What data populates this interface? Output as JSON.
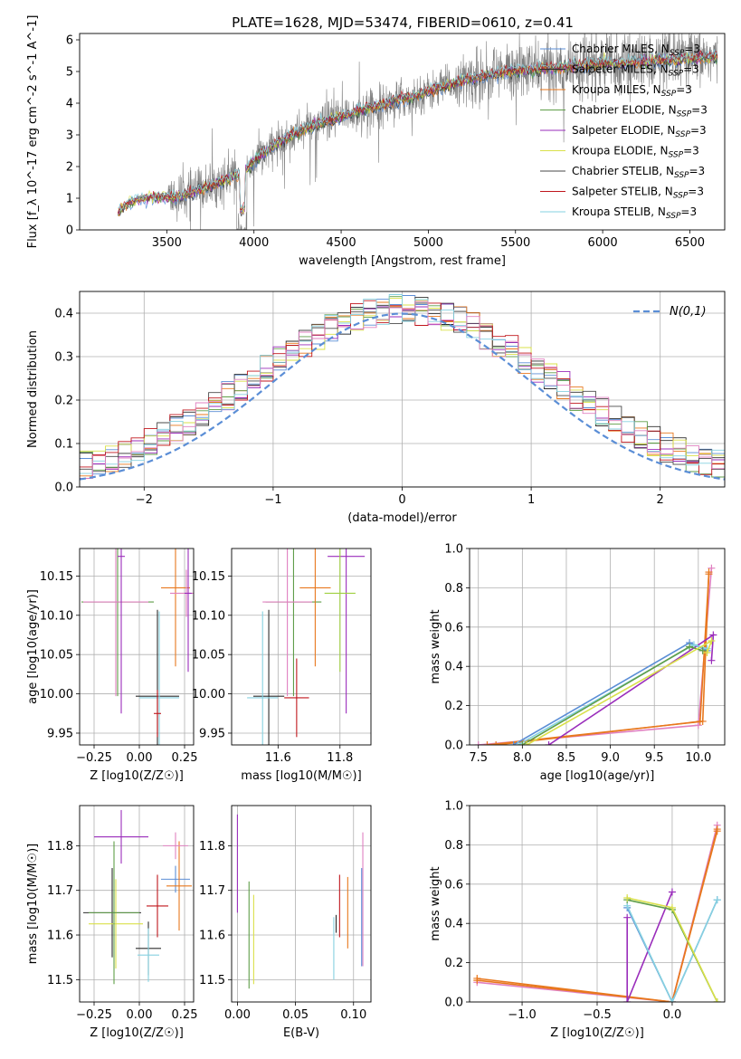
{
  "figure": {
    "title": "PLATE=1628, MJD=53474, FIBERID=0610, z=0.41"
  },
  "colors": {
    "data": "#808080",
    "series": [
      "#5b8ed6",
      "#2d2d2d",
      "#e8781e",
      "#5f9e48",
      "#9a2dbb",
      "#d9e04a",
      "#4a4a4a",
      "#c0161c",
      "#86d1e0"
    ],
    "extra": [
      "#e080c0",
      "#a0d040"
    ],
    "gauss": "#5b8ed6",
    "grid": "#b0b0b0"
  },
  "legend": [
    "Chabrier MILES, N_SSP=3",
    "Salpeter MILES, N_SSP=3",
    "Kroupa MILES, N_SSP=3",
    "Chabrier ELODIE, N_SSP=3",
    "Salpeter ELODIE, N_SSP=3",
    "Kroupa ELODIE, N_SSP=3",
    "Chabrier STELIB, N_SSP=3",
    "Salpeter STELIB, N_SSP=3",
    "Kroupa STELIB, N_SSP=3"
  ],
  "chart_data": [
    {
      "id": "spectrum",
      "type": "line",
      "xlabel": "wavelength [Angstrom, rest frame]",
      "ylabel": "Flux [f_λ 10^-17 erg cm^-2 s^-1 A^-1]",
      "xlim": [
        3000,
        6700
      ],
      "ylim": [
        0,
        6.2
      ],
      "xticks": [
        3500,
        4000,
        4500,
        5000,
        5500,
        6000,
        6500
      ],
      "yticks": [
        0,
        1,
        2,
        3,
        4,
        5,
        6
      ],
      "grid": false,
      "legend_position": "top-right",
      "continuum": {
        "x": [
          3220,
          3260,
          3350,
          3450,
          3550,
          3650,
          3750,
          3850,
          3950,
          4000,
          4100,
          4200,
          4300,
          4400,
          4500,
          4600,
          4700,
          4800,
          4900,
          5000,
          5100,
          5200,
          5300,
          5400,
          5500,
          5600,
          5700,
          5800,
          5900,
          6000,
          6100,
          6200,
          6300,
          6400,
          6500,
          6600
        ],
        "y": [
          0.5,
          0.8,
          1.0,
          1.05,
          1.0,
          1.2,
          1.4,
          1.6,
          1.85,
          2.2,
          2.6,
          2.95,
          3.2,
          3.4,
          3.55,
          3.75,
          3.9,
          4.05,
          4.2,
          4.35,
          4.55,
          4.7,
          4.85,
          4.95,
          5.0,
          5.05,
          5.1,
          5.15,
          5.2,
          5.25,
          5.25,
          5.3,
          5.35,
          5.35,
          5.4,
          5.45
        ]
      }
    },
    {
      "id": "residuals",
      "type": "line",
      "xlabel": "(data-model)/error",
      "ylabel": "Normed distribution",
      "xlim": [
        -2.5,
        2.5
      ],
      "ylim": [
        0,
        0.45
      ],
      "xticks": [
        -2,
        -1,
        0,
        1,
        2
      ],
      "yticks": [
        0.0,
        0.1,
        0.2,
        0.3,
        0.4
      ],
      "grid": true,
      "legend": "N(0,1)",
      "legend_position": "top-right"
    },
    {
      "id": "age-vs-Z",
      "type": "scatter",
      "xlabel": "Z [log10(Z/Z☉)]",
      "ylabel": "age  [log10(age/yr)]",
      "xlim": [
        -0.33,
        0.3
      ],
      "ylim": [
        9.935,
        10.185
      ],
      "xticks": [
        -0.25,
        0.0,
        0.25
      ],
      "yticks": [
        9.95,
        10.0,
        10.05,
        10.1,
        10.15
      ],
      "grid": true,
      "points": [
        {
          "x": -0.12,
          "y": 10.117,
          "xerr": 0.2,
          "yerr": 0.12,
          "c": 3
        },
        {
          "x": -0.13,
          "y": 10.117,
          "xerr": 0.18,
          "yerr": 0.12,
          "c": 9
        },
        {
          "x": -0.1,
          "y": 10.175,
          "xerr": 0.02,
          "yerr": 0.2,
          "c": 4
        },
        {
          "x": 0.1,
          "y": 9.997,
          "xerr": 0.12,
          "yerr": 0.11,
          "c": 1
        },
        {
          "x": 0.11,
          "y": 9.995,
          "xerr": 0.11,
          "yerr": 0.11,
          "c": 8
        },
        {
          "x": 0.1,
          "y": 9.975,
          "xerr": 0.02,
          "yerr": 0.03,
          "c": 7
        },
        {
          "x": 0.2,
          "y": 10.135,
          "xerr": 0.08,
          "yerr": 0.1,
          "c": 2
        },
        {
          "x": 0.26,
          "y": 10.128,
          "xerr": 0.09,
          "yerr": 0.03,
          "c": 9
        },
        {
          "x": 0.27,
          "y": 10.128,
          "xerr": 0.02,
          "yerr": 0.1,
          "c": 4
        }
      ]
    },
    {
      "id": "age-vs-mass",
      "type": "scatter",
      "xlabel": "mass [log10(M/M☉)]",
      "ylabel": "",
      "xlim": [
        11.45,
        11.9
      ],
      "ylim": [
        9.935,
        10.185
      ],
      "xticks": [
        11.6,
        11.8
      ],
      "yticks": [
        9.95,
        10.0,
        10.05,
        10.1,
        10.15
      ],
      "grid": true,
      "points": [
        {
          "x": 11.65,
          "y": 10.117,
          "xerr": 0.09,
          "yerr": 0.12,
          "c": 3
        },
        {
          "x": 11.63,
          "y": 10.117,
          "xerr": 0.08,
          "yerr": 0.12,
          "c": 9
        },
        {
          "x": 11.82,
          "y": 10.175,
          "xerr": 0.06,
          "yerr": 0.2,
          "c": 4
        },
        {
          "x": 11.57,
          "y": 9.997,
          "xerr": 0.05,
          "yerr": 0.11,
          "c": 1
        },
        {
          "x": 11.55,
          "y": 9.995,
          "xerr": 0.05,
          "yerr": 0.11,
          "c": 8
        },
        {
          "x": 11.66,
          "y": 9.995,
          "xerr": 0.04,
          "yerr": 0.05,
          "c": 7
        },
        {
          "x": 11.72,
          "y": 10.135,
          "xerr": 0.05,
          "yerr": 0.1,
          "c": 2
        },
        {
          "x": 11.8,
          "y": 10.128,
          "xerr": 0.05,
          "yerr": 0.1,
          "c": 10
        }
      ]
    },
    {
      "id": "massweight-vs-age",
      "type": "line",
      "xlabel": "age  [log10(age/yr)]",
      "ylabel": "mass weight",
      "xlim": [
        7.4,
        10.3
      ],
      "ylim": [
        0,
        1.0
      ],
      "xticks": [
        7.5,
        8.0,
        8.5,
        9.0,
        9.5,
        10.0
      ],
      "yticks": [
        0.0,
        0.2,
        0.4,
        0.6,
        0.8,
        1.0
      ],
      "grid": true,
      "series": [
        {
          "x": [
            7.5,
            10.0,
            10.15
          ],
          "y": [
            0.0,
            0.1,
            0.9
          ],
          "c": 9
        },
        {
          "x": [
            7.6,
            10.05,
            10.12
          ],
          "y": [
            0.0,
            0.12,
            0.88
          ],
          "c": 2
        },
        {
          "x": [
            7.7,
            10.02,
            10.12
          ],
          "y": [
            0.0,
            0.12,
            0.87
          ],
          "c": 2
        },
        {
          "x": [
            8.3,
            10.17,
            10.15
          ],
          "y": [
            0.0,
            0.56,
            0.43
          ],
          "c": 4
        },
        {
          "x": [
            7.9,
            9.9,
            10.1
          ],
          "y": [
            0.0,
            0.52,
            0.48
          ],
          "c": 0
        },
        {
          "x": [
            7.95,
            9.95,
            10.1
          ],
          "y": [
            0.0,
            0.51,
            0.49
          ],
          "c": 8
        },
        {
          "x": [
            8.0,
            9.9,
            10.05
          ],
          "y": [
            0.0,
            0.5,
            0.48
          ],
          "c": 3
        },
        {
          "x": [
            8.05,
            10.15,
            10.1
          ],
          "y": [
            0.0,
            0.53,
            0.47
          ],
          "c": 5
        }
      ]
    },
    {
      "id": "mass-vs-Z",
      "type": "scatter",
      "xlabel": "Z [log10(Z/Z☉)]",
      "ylabel": "mass [log10(M/M☉)]",
      "xlim": [
        -0.33,
        0.3
      ],
      "ylim": [
        11.45,
        11.89
      ],
      "xticks": [
        -0.25,
        0.0,
        0.25
      ],
      "yticks": [
        11.5,
        11.6,
        11.7,
        11.8
      ],
      "grid": true,
      "points": [
        {
          "x": -0.15,
          "y": 11.65,
          "xerr": 0.16,
          "yerr": 0.1,
          "c": 1
        },
        {
          "x": -0.13,
          "y": 11.625,
          "xerr": 0.15,
          "yerr": 0.1,
          "c": 5
        },
        {
          "x": -0.14,
          "y": 11.65,
          "xerr": 0.14,
          "yerr": 0.16,
          "c": 3
        },
        {
          "x": -0.1,
          "y": 11.82,
          "xerr": 0.15,
          "yerr": 0.06,
          "c": 4
        },
        {
          "x": 0.05,
          "y": 11.57,
          "xerr": 0.07,
          "yerr": 0.06,
          "c": 1
        },
        {
          "x": 0.05,
          "y": 11.555,
          "xerr": 0.06,
          "yerr": 0.06,
          "c": 8
        },
        {
          "x": 0.1,
          "y": 11.665,
          "xerr": 0.06,
          "yerr": 0.07,
          "c": 7
        },
        {
          "x": 0.2,
          "y": 11.725,
          "xerr": 0.08,
          "yerr": 0.03,
          "c": 0
        },
        {
          "x": 0.22,
          "y": 11.71,
          "xerr": 0.07,
          "yerr": 0.1,
          "c": 2
        },
        {
          "x": 0.2,
          "y": 11.8,
          "xerr": 0.07,
          "yerr": 0.03,
          "c": 9
        }
      ]
    },
    {
      "id": "mass-vs-EBV",
      "type": "scatter",
      "xlabel": "E(B-V)",
      "ylabel": "",
      "xlim": [
        -0.005,
        0.115
      ],
      "ylim": [
        11.45,
        11.89
      ],
      "xticks": [
        0.0,
        0.05,
        0.1
      ],
      "yticks": [
        11.5,
        11.6,
        11.7,
        11.8
      ],
      "grid": true,
      "points": [
        {
          "x": 0.0,
          "y": 11.76,
          "yerr": 0.11,
          "c": 4
        },
        {
          "x": 0.01,
          "y": 11.6,
          "yerr": 0.12,
          "c": 3
        },
        {
          "x": 0.014,
          "y": 11.59,
          "yerr": 0.1,
          "c": 5
        },
        {
          "x": 0.083,
          "y": 11.57,
          "yerr": 0.07,
          "c": 8
        },
        {
          "x": 0.085,
          "y": 11.625,
          "yerr": 0.02,
          "c": 1
        },
        {
          "x": 0.088,
          "y": 11.665,
          "yerr": 0.07,
          "c": 7
        },
        {
          "x": 0.095,
          "y": 11.65,
          "yerr": 0.08,
          "c": 2
        },
        {
          "x": 0.108,
          "y": 11.68,
          "yerr": 0.15,
          "c": 9
        },
        {
          "x": 0.107,
          "y": 11.64,
          "yerr": 0.11,
          "c": 0
        }
      ]
    },
    {
      "id": "massweight-vs-Z",
      "type": "line",
      "xlabel": "Z [log10(Z/Z☉)]",
      "ylabel": "mass weight",
      "xlim": [
        -1.35,
        0.35
      ],
      "ylim": [
        0,
        1.0
      ],
      "xticks": [
        -1.0,
        -0.5,
        0.0
      ],
      "yticks": [
        0.0,
        0.2,
        0.4,
        0.6,
        0.8,
        1.0
      ],
      "grid": true,
      "series": [
        {
          "x": [
            -1.3,
            0.0,
            0.3
          ],
          "y": [
            0.1,
            0.0,
            0.9
          ],
          "c": 9
        },
        {
          "x": [
            -1.3,
            0.0,
            0.3
          ],
          "y": [
            0.12,
            0.0,
            0.88
          ],
          "c": 2
        },
        {
          "x": [
            -1.3,
            0.0,
            0.3
          ],
          "y": [
            0.11,
            0.0,
            0.87
          ],
          "c": 2
        },
        {
          "x": [
            -0.3,
            -0.3,
            0.0
          ],
          "y": [
            0.43,
            0.0,
            0.56
          ],
          "c": 4
        },
        {
          "x": [
            -0.3,
            0.0,
            0.3
          ],
          "y": [
            0.48,
            0.0,
            0.52
          ],
          "c": 0
        },
        {
          "x": [
            -0.3,
            0.0,
            0.3
          ],
          "y": [
            0.49,
            0.0,
            0.52
          ],
          "c": 8
        },
        {
          "x": [
            -0.3,
            0.0,
            0.3
          ],
          "y": [
            0.52,
            0.47,
            0.0
          ],
          "c": 3
        },
        {
          "x": [
            -0.3,
            0.0,
            0.3
          ],
          "y": [
            0.53,
            0.48,
            0.0
          ],
          "c": 5
        }
      ]
    }
  ]
}
